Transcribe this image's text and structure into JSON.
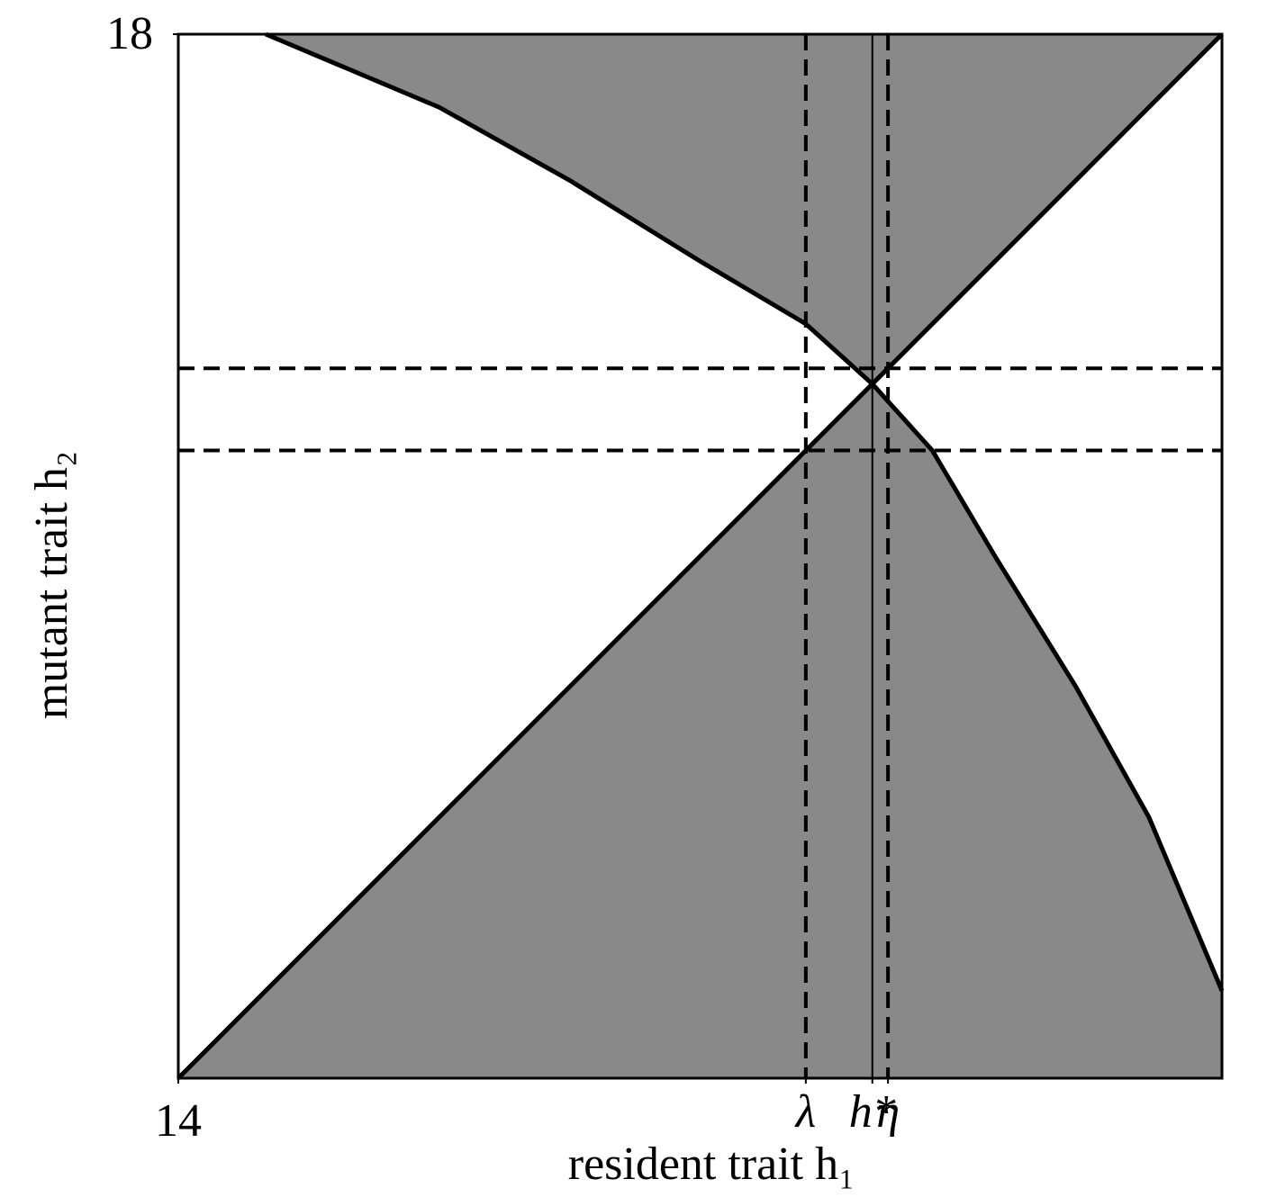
{
  "chart_data": {
    "type": "line",
    "xlabel": "resident trait h₁",
    "ylabel": "mutant trait h₂",
    "xlim": [
      14,
      18
    ],
    "ylim": [
      14,
      18
    ],
    "xticks": [
      14,
      {
        "value": 16.405,
        "label": "λ"
      },
      {
        "value": 16.66,
        "label": "h*"
      },
      {
        "value": 16.72,
        "label": "η"
      }
    ],
    "yticks": [
      18
    ],
    "fill_color": "#898989",
    "series": [
      {
        "color": "#000000",
        "x": [
          14,
          18
        ],
        "values": [
          14,
          18
        ]
      },
      {
        "color": "#000000",
        "x": [
          14.335,
          15.0,
          15.5,
          16.0,
          16.405,
          16.66,
          16.89,
          17.13,
          17.44,
          17.72,
          18.0
        ],
        "values": [
          18.0,
          17.72,
          17.44,
          17.13,
          16.89,
          16.66,
          16.405,
          16.0,
          15.5,
          15.0,
          14.335
        ]
      }
    ],
    "vlines": [
      {
        "value": 16.405,
        "style": "dashed"
      },
      {
        "value": 16.66,
        "style": "solid"
      },
      {
        "value": 16.72,
        "style": "dashed"
      }
    ],
    "hlines": [
      {
        "value": 16.405,
        "style": "dashed"
      },
      {
        "value": 16.72,
        "style": "dashed"
      }
    ]
  }
}
